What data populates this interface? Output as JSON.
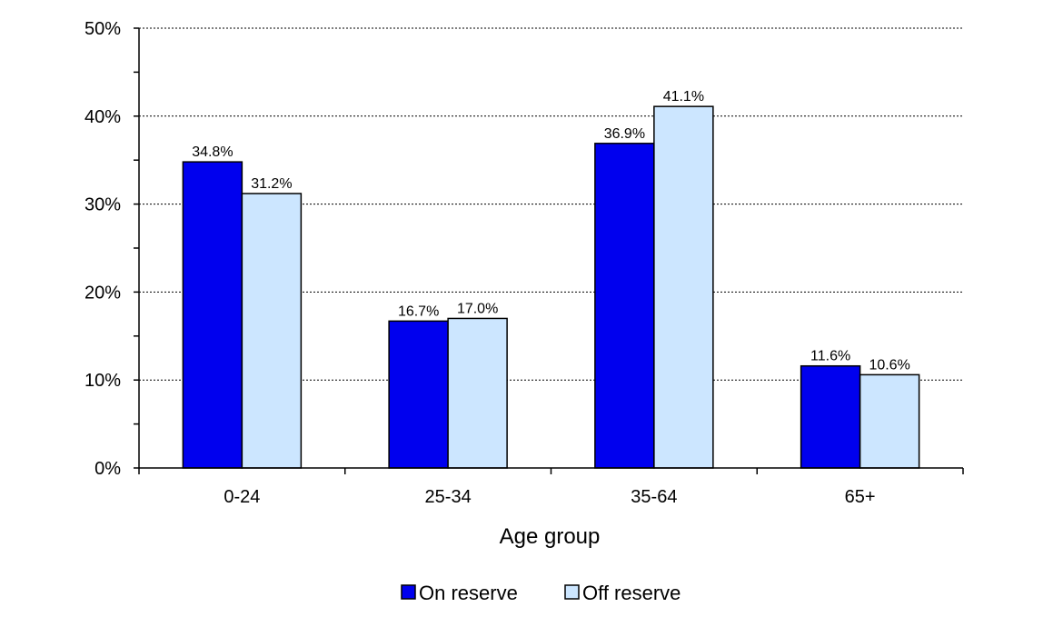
{
  "chart_data": {
    "type": "bar",
    "title": "",
    "xlabel": "Age group",
    "ylabel": "",
    "categories": [
      "0-24",
      "25-34",
      "35-64",
      "65+"
    ],
    "series": [
      {
        "name": "On reserve",
        "values": [
          34.8,
          16.7,
          36.9,
          11.6
        ],
        "labels": [
          "34.8%",
          "16.7%",
          "36.9%",
          "11.6%"
        ],
        "color": "#0000ee"
      },
      {
        "name": "Off reserve",
        "values": [
          31.2,
          17.0,
          41.1,
          10.6
        ],
        "labels": [
          "31.2%",
          "17.0%",
          "41.1%",
          "10.6%"
        ],
        "color": "#cce6ff"
      }
    ],
    "ylim": [
      0,
      50
    ],
    "yticks": [
      0,
      10,
      20,
      30,
      40,
      50
    ],
    "ytick_labels": [
      "0%",
      "10%",
      "20%",
      "30%",
      "40%",
      "50%"
    ],
    "grid": true,
    "legend_position": "bottom"
  }
}
